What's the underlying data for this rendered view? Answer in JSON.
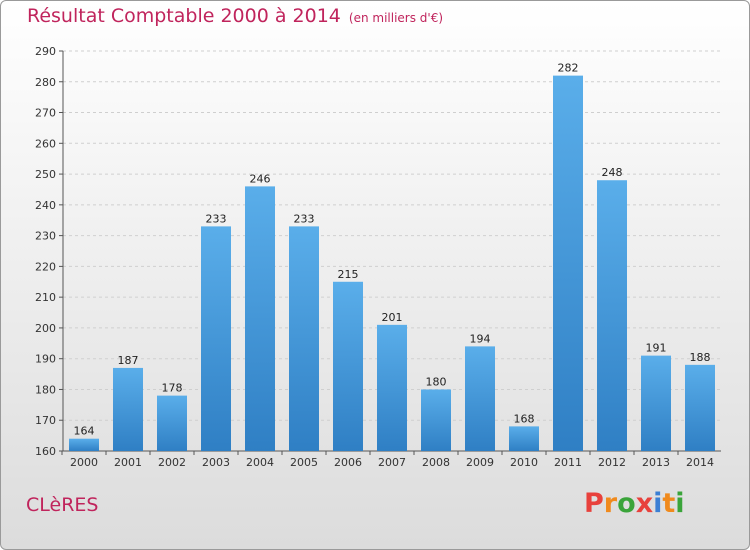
{
  "chart_data": {
    "type": "bar",
    "title": "Résultat Comptable 2000 à 2014",
    "subtitle": "(en milliers d'€)",
    "categories": [
      "2000",
      "2001",
      "2002",
      "2003",
      "2004",
      "2005",
      "2006",
      "2007",
      "2008",
      "2009",
      "2010",
      "2011",
      "2012",
      "2013",
      "2014"
    ],
    "values": [
      164,
      187,
      178,
      233,
      246,
      233,
      215,
      201,
      180,
      194,
      168,
      282,
      248,
      191,
      188
    ],
    "ylim": [
      160,
      290
    ],
    "yticks": [
      160,
      170,
      180,
      190,
      200,
      210,
      220,
      230,
      240,
      250,
      260,
      270,
      280,
      290
    ],
    "grid": true,
    "bar_color": "#4a9fe0"
  },
  "footer": {
    "commune": "CLèRES",
    "brand": "Proxiti"
  },
  "colors": {
    "title": "#c0245c",
    "brand_letters": [
      "#e8413c",
      "#f08a1d",
      "#3aa43a",
      "#e8413c",
      "#3b7fd4",
      "#f08a1d",
      "#3aa43a"
    ]
  }
}
